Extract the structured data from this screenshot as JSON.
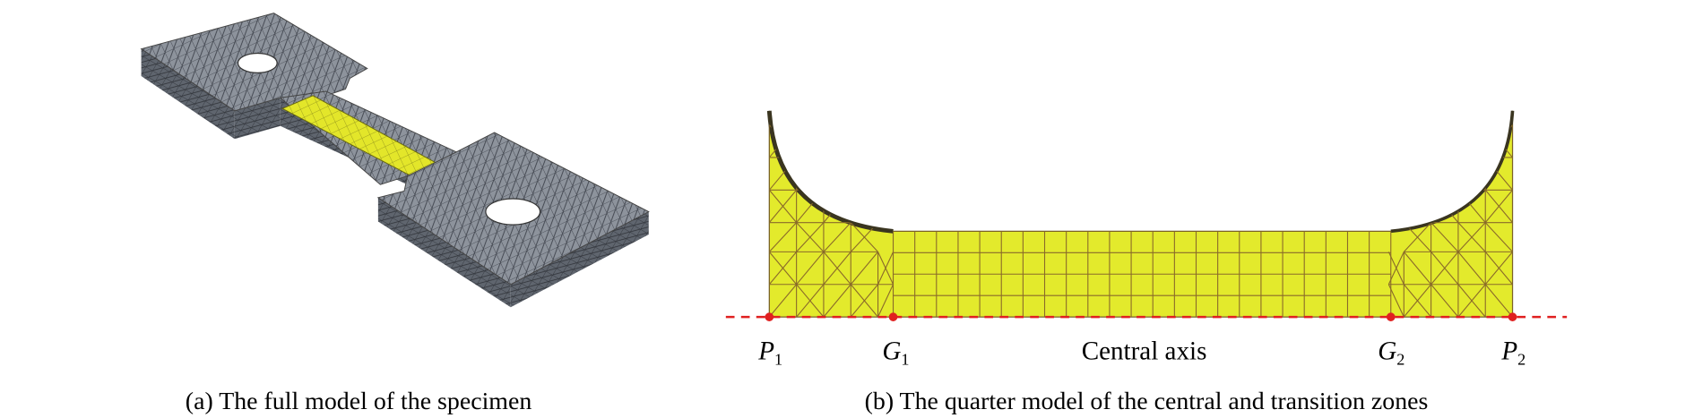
{
  "panels": [
    {
      "caption": "(a) The full model of the specimen"
    },
    {
      "caption": "(b) The quarter model of the central and transition zones",
      "points": [
        {
          "letter": "P",
          "subscript": "1"
        },
        {
          "letter": "G",
          "subscript": "1"
        },
        {
          "letter": "G",
          "subscript": "2"
        },
        {
          "letter": "P",
          "subscript": "2"
        }
      ],
      "axis_label": "Central axis"
    }
  ]
}
